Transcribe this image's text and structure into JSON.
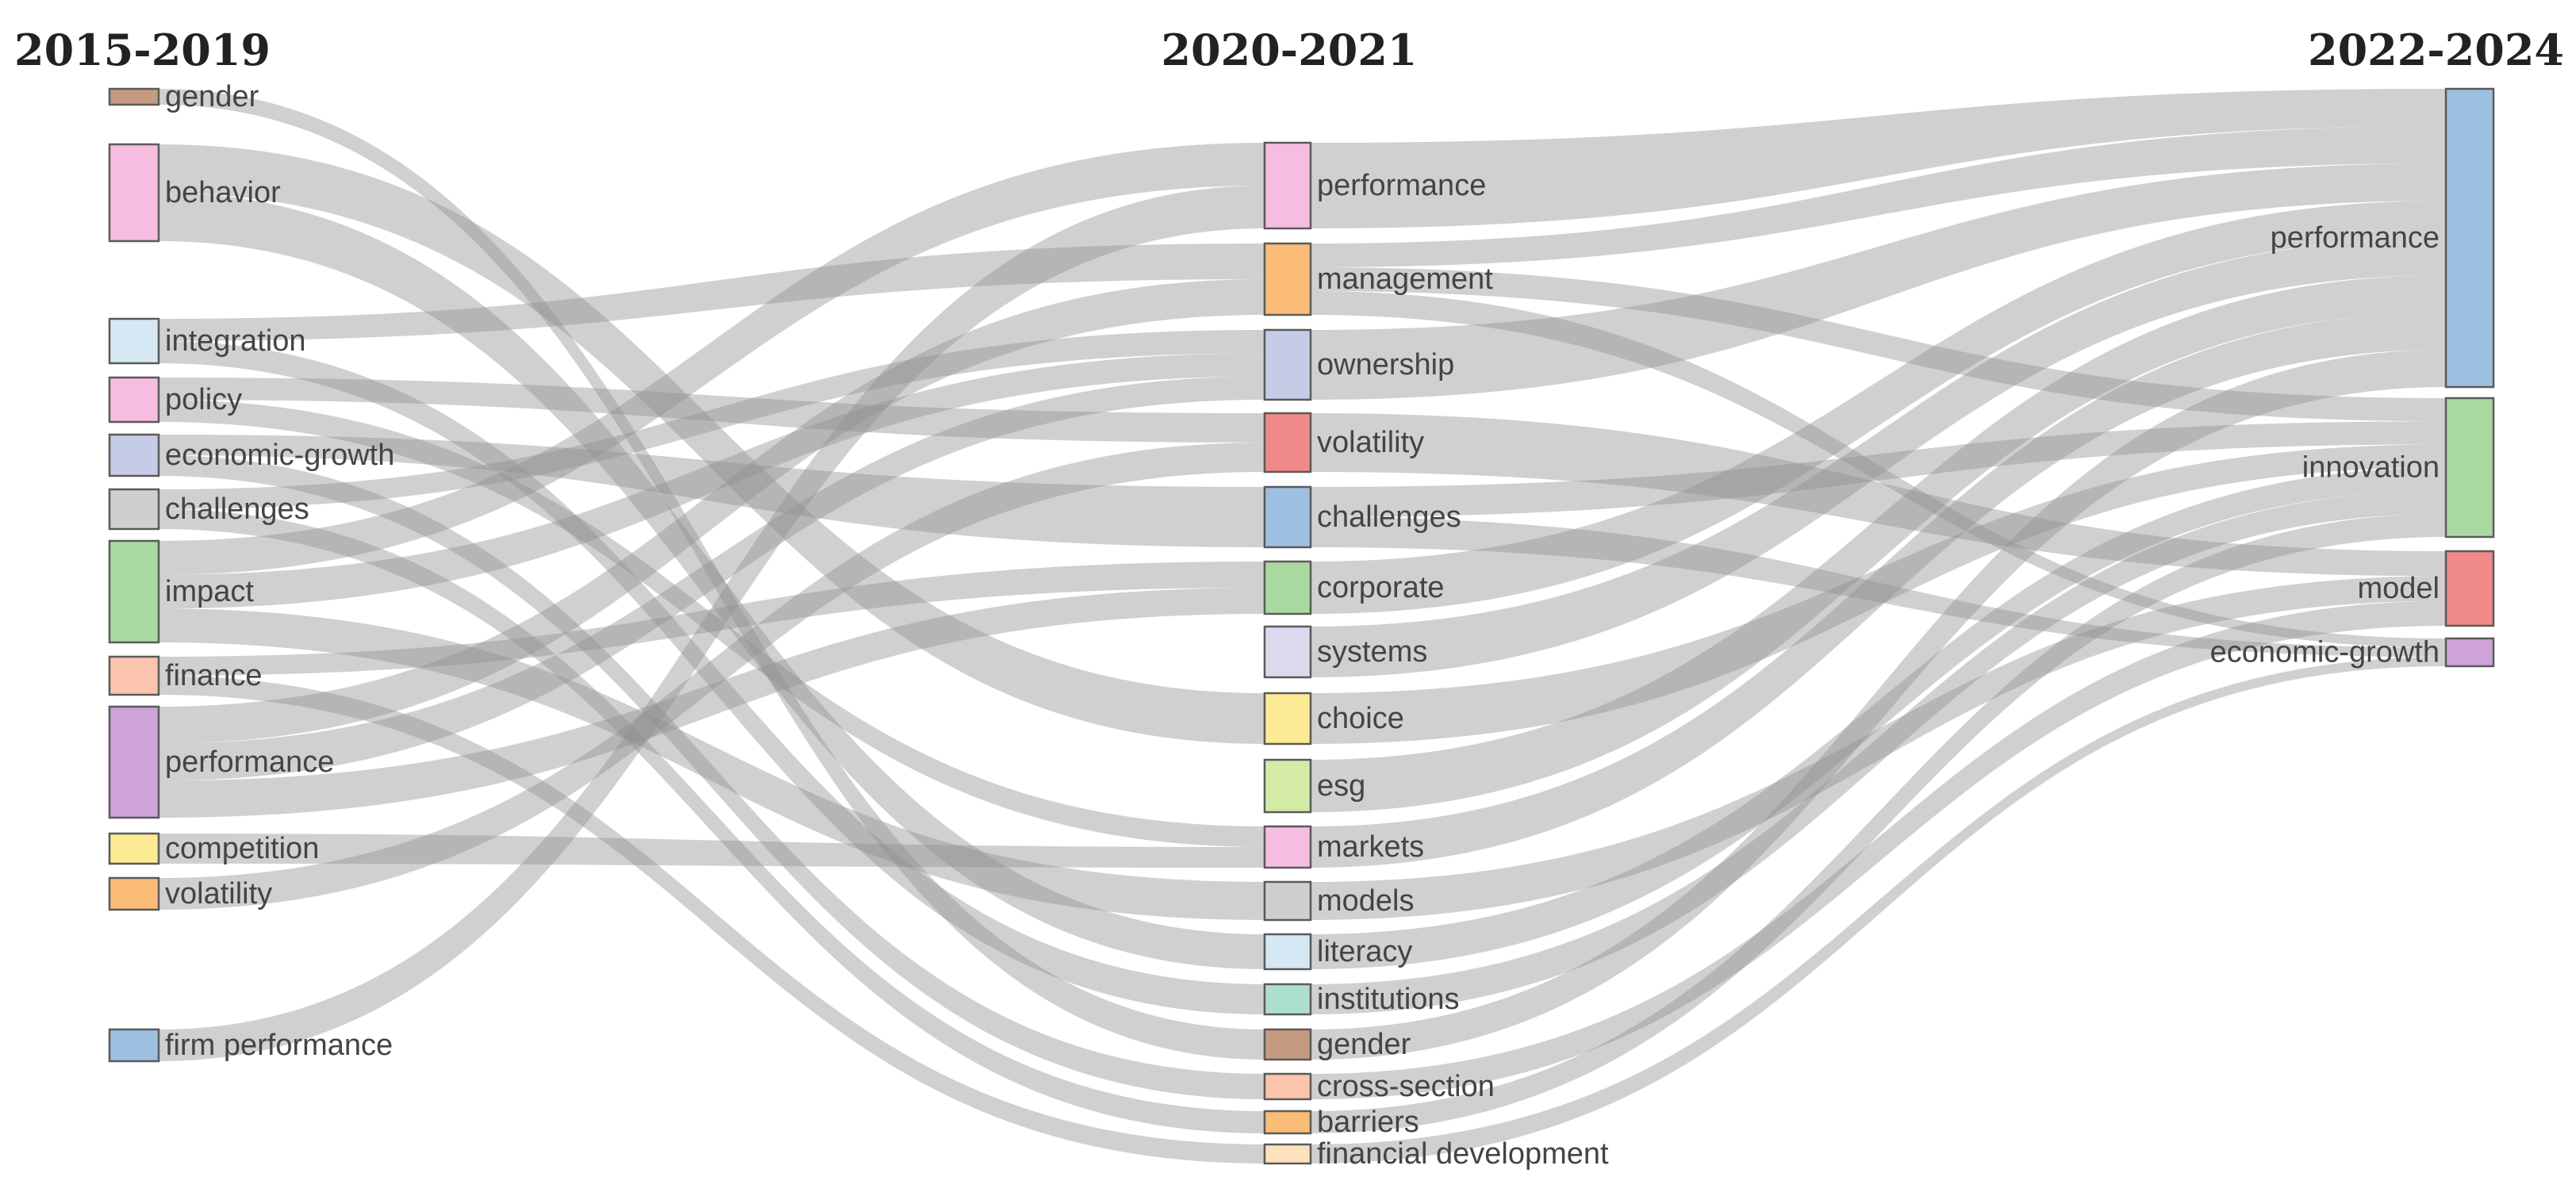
{
  "periods": [
    "2015-2019",
    "2020-2021",
    "2022-2024"
  ],
  "columns": [
    {
      "name": "2015-2019",
      "nodes": [
        {
          "id": "a-gender",
          "label": "gender",
          "color": "#c49a80"
        },
        {
          "id": "a-behavior",
          "label": "behavior",
          "color": "#f7bde0"
        },
        {
          "id": "a-integration",
          "label": "integration",
          "color": "#d6e8f4"
        },
        {
          "id": "a-policy",
          "label": "policy",
          "color": "#f7bde0"
        },
        {
          "id": "a-economic-growth",
          "label": "economic-growth",
          "color": "#c6cbe6"
        },
        {
          "id": "a-challenges",
          "label": "challenges",
          "color": "#cfcfcf"
        },
        {
          "id": "a-impact",
          "label": "impact",
          "color": "#a9d9a0"
        },
        {
          "id": "a-finance",
          "label": "finance",
          "color": "#fbc4ad"
        },
        {
          "id": "a-performance",
          "label": "performance",
          "color": "#cda3d8"
        },
        {
          "id": "a-competition",
          "label": "competition",
          "color": "#fcea94"
        },
        {
          "id": "a-volatility",
          "label": "volatility",
          "color": "#fbbc77"
        },
        {
          "id": "a-firm-performance",
          "label": "firm performance",
          "color": "#9dbfe0"
        }
      ]
    },
    {
      "name": "2020-2021",
      "nodes": [
        {
          "id": "b-performance",
          "label": "performance",
          "color": "#f7bde0"
        },
        {
          "id": "b-management",
          "label": "management",
          "color": "#fbbc77"
        },
        {
          "id": "b-ownership",
          "label": "ownership",
          "color": "#c6cbe6"
        },
        {
          "id": "b-volatility",
          "label": "volatility",
          "color": "#f08a8a"
        },
        {
          "id": "b-challenges",
          "label": "challenges",
          "color": "#9dbfe0"
        },
        {
          "id": "b-corporate",
          "label": "corporate",
          "color": "#a9d9a0"
        },
        {
          "id": "b-systems",
          "label": "systems",
          "color": "#dcd9ee"
        },
        {
          "id": "b-choice",
          "label": "choice",
          "color": "#fcea94"
        },
        {
          "id": "b-esg",
          "label": "esg",
          "color": "#d4eba6"
        },
        {
          "id": "b-markets",
          "label": "markets",
          "color": "#f7bde0"
        },
        {
          "id": "b-models",
          "label": "models",
          "color": "#cfcfcf"
        },
        {
          "id": "b-literacy",
          "label": "literacy",
          "color": "#d6e8f4"
        },
        {
          "id": "b-institutions",
          "label": "institutions",
          "color": "#acdfcd"
        },
        {
          "id": "b-gender",
          "label": "gender",
          "color": "#c49a80"
        },
        {
          "id": "b-cross-section",
          "label": "cross-section",
          "color": "#fbc4ad"
        },
        {
          "id": "b-barriers",
          "label": "barriers",
          "color": "#fbbc77"
        },
        {
          "id": "b-financial-development",
          "label": "financial development",
          "color": "#fde1bd"
        }
      ]
    },
    {
      "name": "2022-2024",
      "nodes": [
        {
          "id": "c-performance",
          "label": "performance",
          "color": "#9dbfe0"
        },
        {
          "id": "c-innovation",
          "label": "innovation",
          "color": "#a9d9a0"
        },
        {
          "id": "c-model",
          "label": "model",
          "color": "#f08a8a"
        },
        {
          "id": "c-economic-growth",
          "label": "economic-growth",
          "color": "#cda3d8"
        }
      ]
    }
  ],
  "flows": [
    {
      "from": "a-gender",
      "to": "b-gender"
    },
    {
      "from": "a-behavior",
      "to": "b-choice"
    },
    {
      "from": "a-behavior",
      "to": "b-literacy"
    },
    {
      "from": "a-integration",
      "to": "b-management"
    },
    {
      "from": "a-integration",
      "to": "b-institutions"
    },
    {
      "from": "a-policy",
      "to": "b-volatility"
    },
    {
      "from": "a-policy",
      "to": "b-markets"
    },
    {
      "from": "a-economic-growth",
      "to": "b-challenges"
    },
    {
      "from": "a-economic-growth",
      "to": "b-cross-section"
    },
    {
      "from": "a-challenges",
      "to": "b-ownership"
    },
    {
      "from": "a-challenges",
      "to": "b-barriers"
    },
    {
      "from": "a-impact",
      "to": "b-performance"
    },
    {
      "from": "a-impact",
      "to": "b-ownership"
    },
    {
      "from": "a-impact",
      "to": "b-models"
    },
    {
      "from": "a-finance",
      "to": "b-corporate"
    },
    {
      "from": "a-finance",
      "to": "b-financial-development"
    },
    {
      "from": "a-performance",
      "to": "b-management"
    },
    {
      "from": "a-performance",
      "to": "b-ownership"
    },
    {
      "from": "a-performance",
      "to": "b-corporate"
    },
    {
      "from": "a-competition",
      "to": "b-markets"
    },
    {
      "from": "a-volatility",
      "to": "b-volatility"
    },
    {
      "from": "a-firm-performance",
      "to": "b-performance"
    },
    {
      "from": "b-performance",
      "to": "c-performance"
    },
    {
      "from": "b-management",
      "to": "c-performance"
    },
    {
      "from": "b-management",
      "to": "c-innovation"
    },
    {
      "from": "b-management",
      "to": "c-economic-growth"
    },
    {
      "from": "b-ownership",
      "to": "c-performance"
    },
    {
      "from": "b-volatility",
      "to": "c-model"
    },
    {
      "from": "b-challenges",
      "to": "c-innovation"
    },
    {
      "from": "b-challenges",
      "to": "c-economic-growth"
    },
    {
      "from": "b-corporate",
      "to": "c-performance"
    },
    {
      "from": "b-systems",
      "to": "c-performance"
    },
    {
      "from": "b-choice",
      "to": "c-innovation"
    },
    {
      "from": "b-esg",
      "to": "c-performance"
    },
    {
      "from": "b-markets",
      "to": "c-performance"
    },
    {
      "from": "b-models",
      "to": "c-model"
    },
    {
      "from": "b-literacy",
      "to": "c-innovation"
    },
    {
      "from": "b-institutions",
      "to": "c-innovation"
    },
    {
      "from": "b-gender",
      "to": "c-performance"
    },
    {
      "from": "b-cross-section",
      "to": "c-model"
    },
    {
      "from": "b-barriers",
      "to": "c-innovation"
    },
    {
      "from": "b-financial-development",
      "to": "c-economic-growth"
    }
  ]
}
